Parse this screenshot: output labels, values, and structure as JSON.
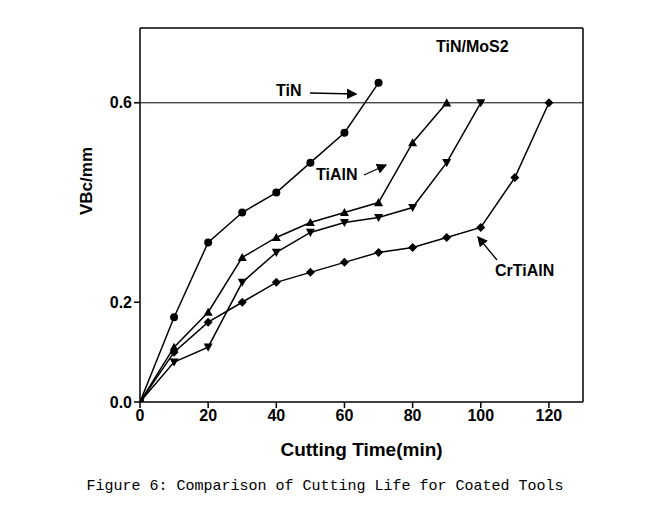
{
  "chart_data": {
    "type": "line",
    "title": "Figure 6: Comparison of Cutting Life for Coated Tools",
    "x_label": "Cutting Time(min)",
    "y_label": "VBc/mm",
    "xlim": [
      0,
      130
    ],
    "xticks": [
      0,
      20,
      40,
      60,
      80,
      100,
      120
    ],
    "ylim": [
      0,
      0.75
    ],
    "yticks": [
      {
        "value": 0,
        "label": "0.0"
      },
      {
        "value": 0.2,
        "label": "0.2"
      },
      {
        "value": 0.6,
        "label": "0.6"
      }
    ],
    "threshold": 0.6,
    "grid": false,
    "series": [
      {
        "name": "TiN",
        "color": "#000000",
        "marker": "circle",
        "x": [
          0,
          10,
          20,
          30,
          40,
          50,
          60,
          70
        ],
        "values": [
          0,
          0.17,
          0.32,
          0.38,
          0.42,
          0.48,
          0.54,
          0.64
        ]
      },
      {
        "name": "TiAlN",
        "color": "#000000",
        "marker": "triangle",
        "x": [
          0,
          10,
          20,
          30,
          40,
          50,
          60,
          70,
          80,
          90
        ],
        "values": [
          0,
          0.11,
          0.18,
          0.29,
          0.33,
          0.36,
          0.38,
          0.4,
          0.52,
          0.6
        ]
      },
      {
        "name": "TiN/MoS2",
        "color": "#000000",
        "marker": "triangle-down",
        "x": [
          0,
          10,
          20,
          30,
          40,
          50,
          60,
          70,
          80,
          90,
          100
        ],
        "values": [
          0,
          0.08,
          0.11,
          0.24,
          0.3,
          0.34,
          0.36,
          0.37,
          0.39,
          0.48,
          0.6
        ]
      },
      {
        "name": "CrTiAlN",
        "color": "#000000",
        "marker": "diamond",
        "x": [
          0,
          10,
          20,
          30,
          40,
          50,
          60,
          70,
          80,
          90,
          100,
          110,
          120
        ],
        "values": [
          0,
          0.1,
          0.16,
          0.2,
          0.24,
          0.26,
          0.28,
          0.3,
          0.31,
          0.33,
          0.35,
          0.45,
          0.6
        ]
      }
    ]
  }
}
